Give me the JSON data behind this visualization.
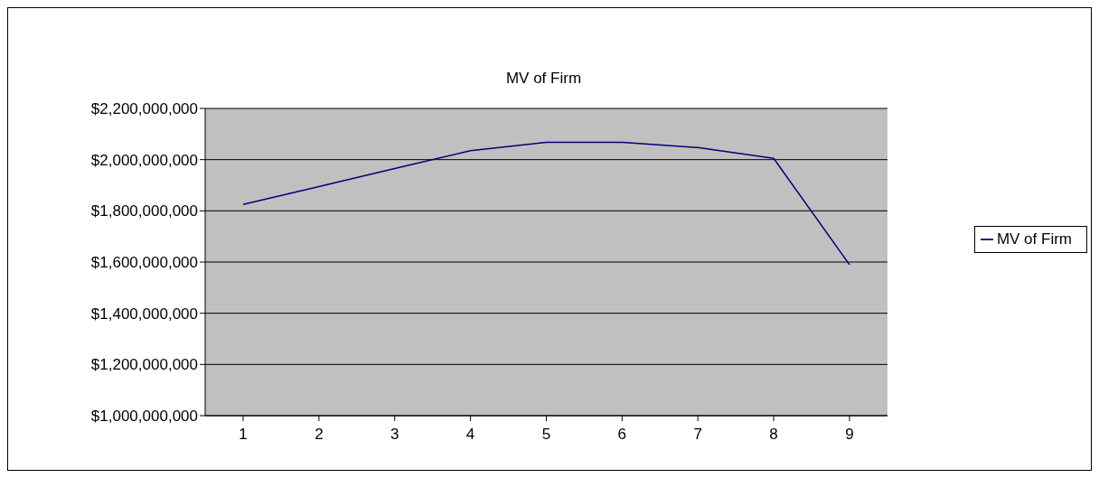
{
  "chart_data": {
    "type": "line",
    "title": "MV of Firm",
    "categories": [
      "1",
      "2",
      "3",
      "4",
      "5",
      "6",
      "7",
      "8",
      "9"
    ],
    "series": [
      {
        "name": "MV of Firm",
        "color": "#000080",
        "values": [
          1825000000,
          1895000000,
          1965000000,
          2035000000,
          2068000000,
          2068000000,
          2047000000,
          2005000000,
          1590000000
        ]
      }
    ],
    "ylim": [
      1000000000,
      2200000000
    ],
    "yticks": [
      {
        "value": 1000000000,
        "label": "$1,000,000,000"
      },
      {
        "value": 1200000000,
        "label": "$1,200,000,000"
      },
      {
        "value": 1400000000,
        "label": "$1,400,000,000"
      },
      {
        "value": 1600000000,
        "label": "$1,600,000,000"
      },
      {
        "value": 1800000000,
        "label": "$1,800,000,000"
      },
      {
        "value": 2000000000,
        "label": "$2,000,000,000"
      },
      {
        "value": 2200000000,
        "label": "$2,200,000,000"
      }
    ],
    "grid": "y",
    "legend": "right",
    "marker": "none",
    "line_style": "solid"
  }
}
